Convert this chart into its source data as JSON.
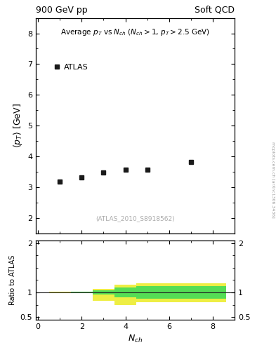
{
  "title_left": "900 GeV pp",
  "title_right": "Soft QCD",
  "watermark": "(ATLAS_2010_S8918562)",
  "side_text": "mcplots.cern.ch [arXiv:1306.3436]",
  "xlabel": "N_{ch}",
  "ylabel_main": "<p_{T}> [GeV]",
  "ylabel_ratio": "Ratio to ATLAS",
  "data_x": [
    1,
    2,
    3,
    4,
    5,
    7
  ],
  "data_y": [
    3.18,
    3.32,
    3.47,
    3.57,
    3.57,
    3.82
  ],
  "main_ylim": [
    1.5,
    8.5
  ],
  "main_yticks": [
    2,
    3,
    4,
    5,
    6,
    7,
    8
  ],
  "ratio_ylim": [
    0.45,
    2.05
  ],
  "ratio_yticks": [
    0.5,
    1.0,
    1.5,
    2.0
  ],
  "xlim": [
    -0.1,
    9.0
  ],
  "xticks": [
    0,
    2,
    4,
    6,
    8
  ],
  "yellow_band_edges_x": [
    0.5,
    1.5,
    2.5,
    3.5,
    4.5,
    8.6
  ],
  "yellow_band_upper": [
    1.01,
    1.02,
    1.07,
    1.15,
    1.18,
    1.18
  ],
  "yellow_band_lower": [
    0.99,
    0.98,
    0.83,
    0.75,
    0.8,
    0.8
  ],
  "green_band_edges_x": [
    0.5,
    1.5,
    2.5,
    3.5,
    4.5,
    8.6
  ],
  "green_band_upper": [
    1.005,
    1.01,
    1.04,
    1.1,
    1.13,
    1.13
  ],
  "green_band_lower": [
    0.995,
    0.99,
    0.96,
    0.9,
    0.87,
    0.87
  ],
  "marker_color": "#1a1a1a",
  "marker_size": 5,
  "green_color": "#55dd55",
  "yellow_color": "#eeee44",
  "ratio_line_color": "#222222",
  "background_color": "#ffffff",
  "axis_label_fontsize": 9,
  "tick_label_fontsize": 8,
  "inner_title": "Average p_T vs N_ch (N_ch > 1, p_T > 2.5 GeV)",
  "inner_title_fontsize": 7.5,
  "legend_label": "ATLAS",
  "legend_fontsize": 8
}
